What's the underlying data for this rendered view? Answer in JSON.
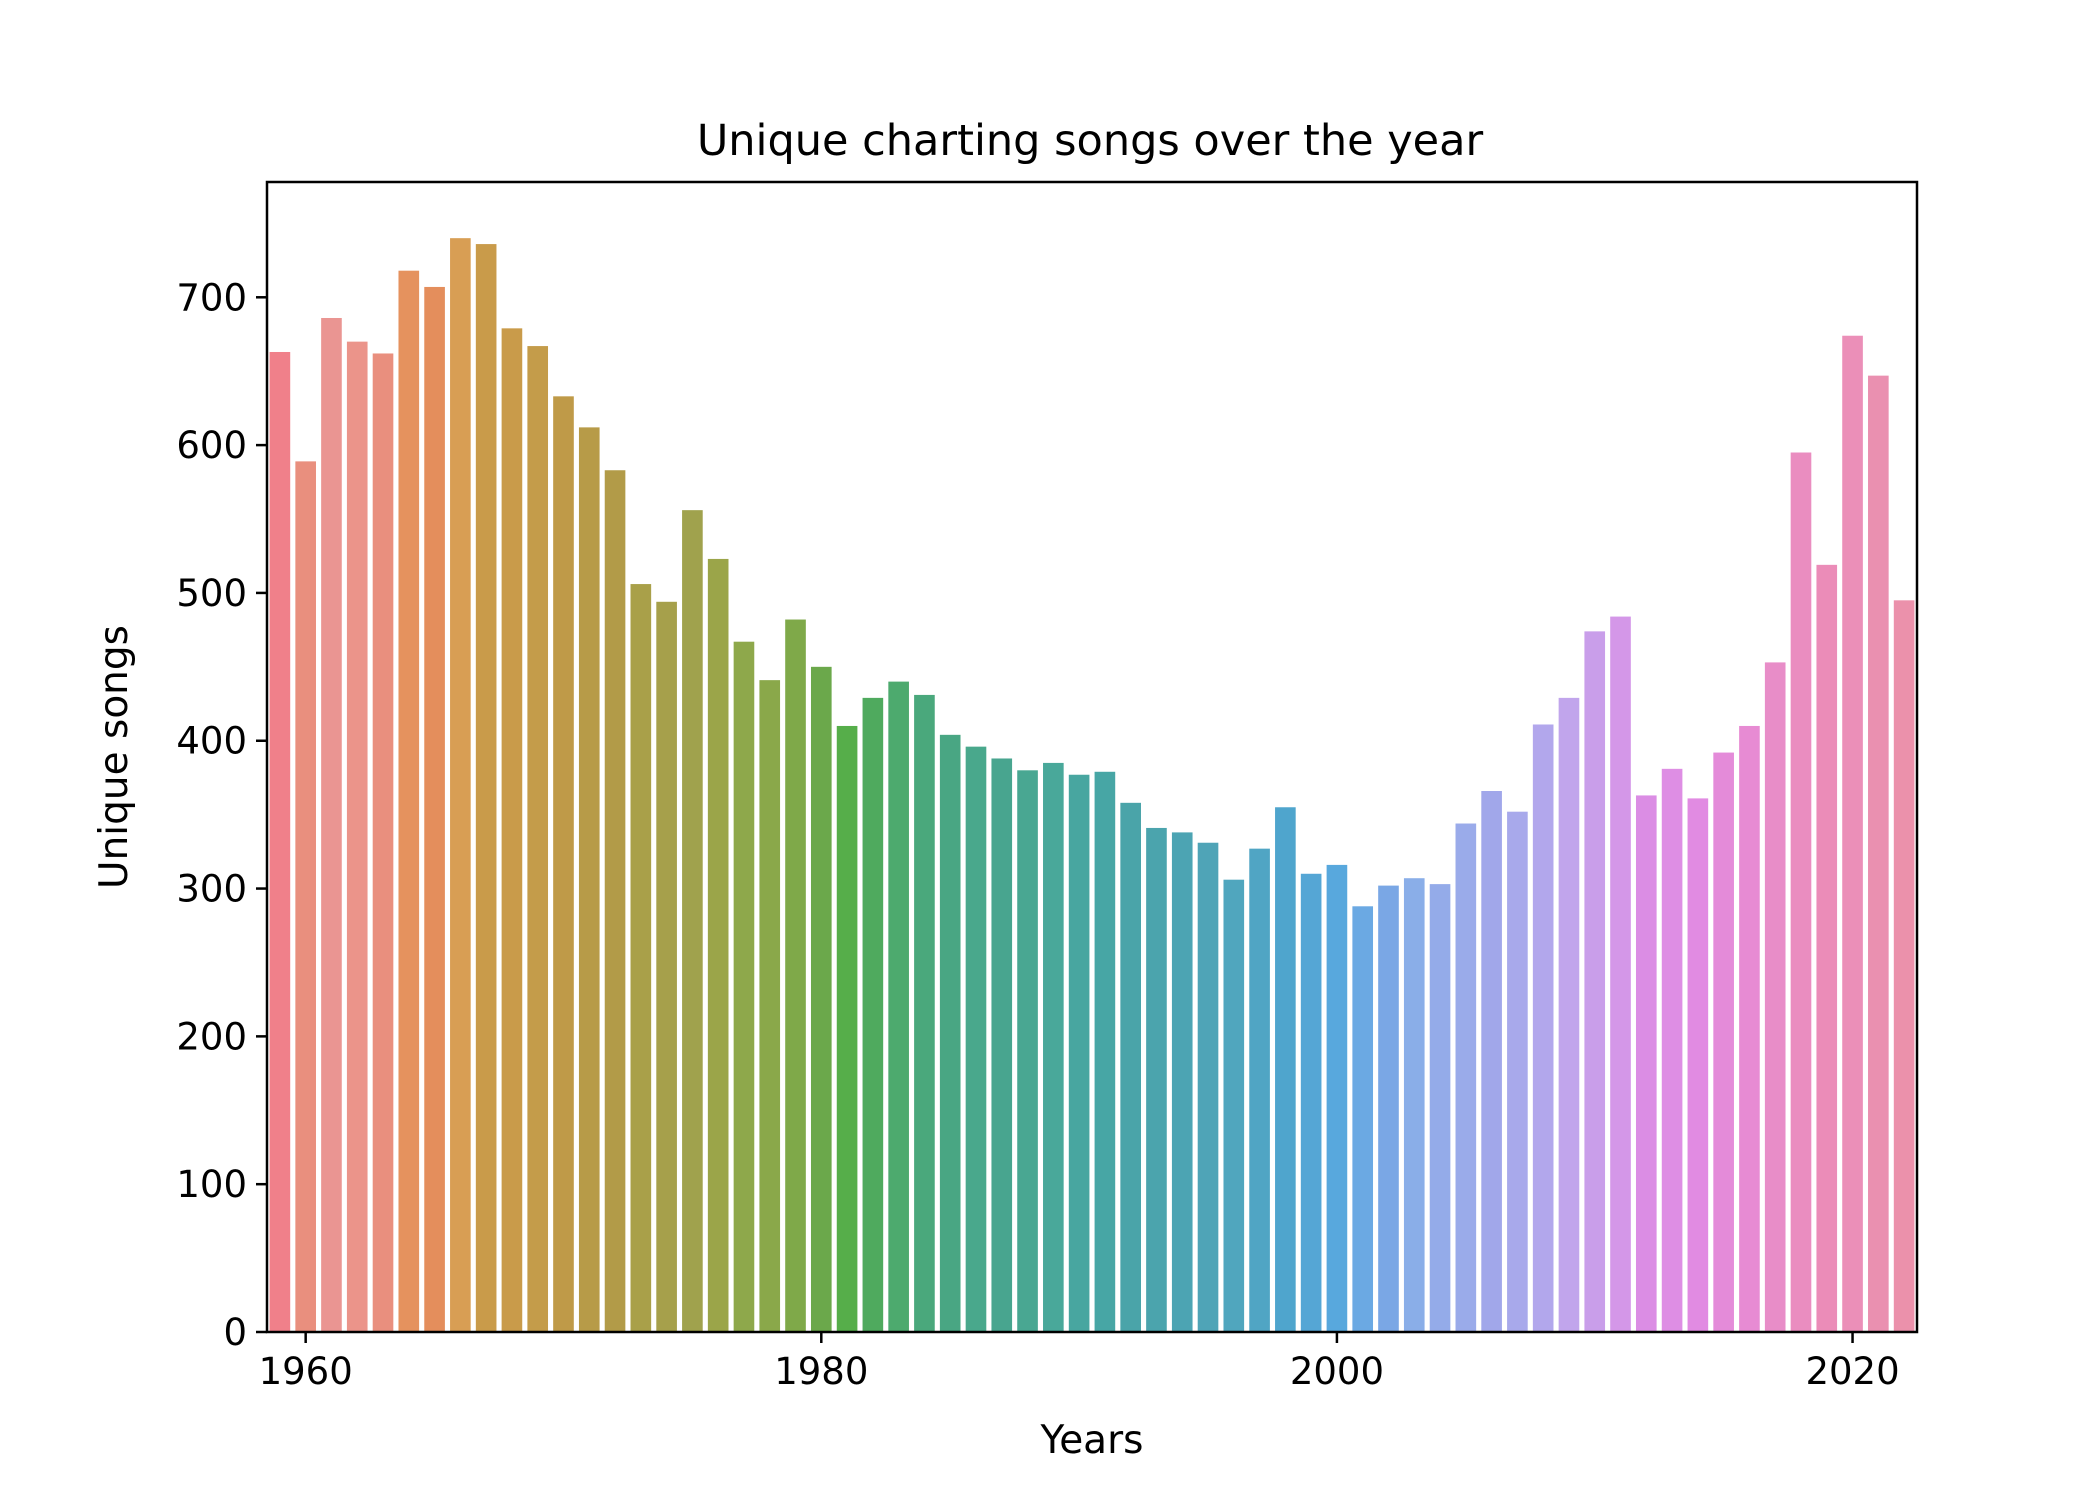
{
  "chart_data": {
    "type": "bar",
    "title": "Unique charting songs over the year",
    "xlabel": "Years",
    "ylabel": "Unique songs",
    "ylim": [
      0,
      778
    ],
    "x_ticks": [
      1960,
      1980,
      2000,
      2020
    ],
    "y_ticks": [
      0,
      100,
      200,
      300,
      400,
      500,
      600,
      700
    ],
    "grid": false,
    "legend": "none",
    "categories": [
      1959,
      1960,
      1961,
      1962,
      1963,
      1964,
      1965,
      1966,
      1967,
      1968,
      1969,
      1970,
      1971,
      1972,
      1973,
      1974,
      1975,
      1976,
      1977,
      1978,
      1979,
      1980,
      1981,
      1982,
      1983,
      1984,
      1985,
      1986,
      1987,
      1988,
      1989,
      1990,
      1991,
      1992,
      1993,
      1994,
      1995,
      1996,
      1997,
      1998,
      1999,
      2000,
      2001,
      2002,
      2003,
      2004,
      2005,
      2006,
      2007,
      2008,
      2009,
      2010,
      2011,
      2012,
      2013,
      2014,
      2015,
      2016,
      2017,
      2018,
      2019,
      2020,
      2021,
      2022
    ],
    "values": [
      663,
      589,
      686,
      670,
      662,
      718,
      707,
      740,
      736,
      679,
      667,
      633,
      612,
      583,
      506,
      494,
      556,
      523,
      467,
      441,
      482,
      450,
      410,
      429,
      440,
      431,
      404,
      396,
      388,
      380,
      385,
      377,
      379,
      358,
      341,
      338,
      331,
      306,
      327,
      355,
      310,
      316,
      288,
      302,
      307,
      303,
      344,
      366,
      352,
      411,
      429,
      474,
      484,
      363,
      381,
      361,
      392,
      410,
      453,
      595,
      519,
      674,
      647,
      495
    ],
    "colors": [
      "#f0808a",
      "#e98f7e",
      "#ea9592",
      "#eb948a",
      "#e98f7e",
      "#e5925e",
      "#e48e5c",
      "#d89e54",
      "#c99b4a",
      "#c99b4a",
      "#c49c4a",
      "#bf9a48",
      "#b79b48",
      "#b29b48",
      "#a9a049",
      "#a6a04b",
      "#a0a24d",
      "#9ba549",
      "#8ea84b",
      "#8aa84a",
      "#7fa949",
      "#6ba84b",
      "#56ae4a",
      "#4faa5e",
      "#4daa6e",
      "#4aa87c",
      "#49a683",
      "#49a88c",
      "#48a58f",
      "#49a792",
      "#49a89a",
      "#48a6a0",
      "#47a6a5",
      "#4aa4a9",
      "#4ba4ad",
      "#4ca4b3",
      "#4fa4b7",
      "#50a6be",
      "#50a5c4",
      "#4fa5cd",
      "#55a6d5",
      "#58a8dd",
      "#6ba9e3",
      "#7aa7e5",
      "#8aaee8",
      "#94abe9",
      "#9aabea",
      "#a1a7ea",
      "#a8a9eb",
      "#b2a7ec",
      "#c1a5ec",
      "#c99eea",
      "#d497e8",
      "#db8de4",
      "#de8ee4",
      "#e18be2",
      "#e48bd9",
      "#e78bd3",
      "#e88dc8",
      "#ea8dc0",
      "#eb8cb8",
      "#eb8fb8",
      "#ea90b0",
      "#eb91ab"
    ]
  }
}
